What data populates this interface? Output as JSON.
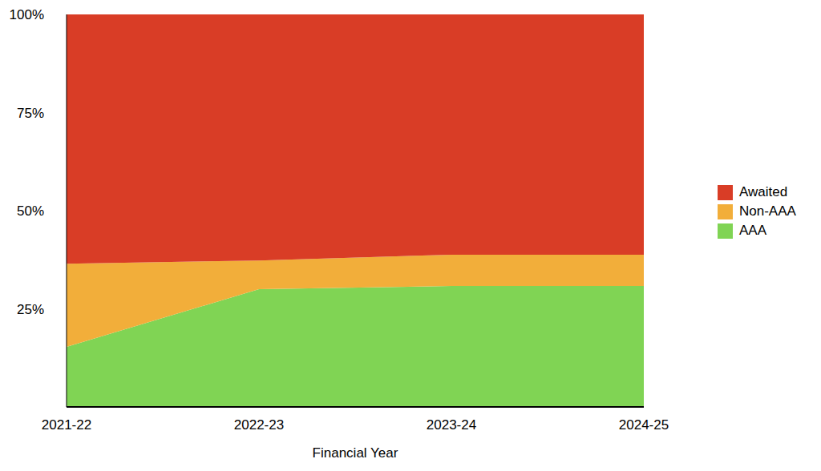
{
  "chart_data": {
    "type": "area",
    "stacked": true,
    "x_label": "Financial Year",
    "categories": [
      "2021-22",
      "2022-23",
      "2023-24",
      "2024-25"
    ],
    "series": [
      {
        "name": "Awaited",
        "color": "#d93d26",
        "values": [
          63.5,
          62.7,
          61.2,
          61.2
        ]
      },
      {
        "name": "Non-AAA",
        "color": "#f2ae3a",
        "values": [
          21.2,
          7.3,
          8,
          8
        ]
      },
      {
        "name": "AAA",
        "color": "#80d454",
        "values": [
          15.3,
          30,
          30.8,
          30.8
        ]
      }
    ],
    "ylim": [
      0,
      100
    ],
    "yticks": [
      {
        "value": 25,
        "label": "25%"
      },
      {
        "value": 50,
        "label": "50%"
      },
      {
        "value": 75,
        "label": "75%"
      },
      {
        "value": 100,
        "label": "100%"
      }
    ],
    "grid": false,
    "legend": "right"
  }
}
